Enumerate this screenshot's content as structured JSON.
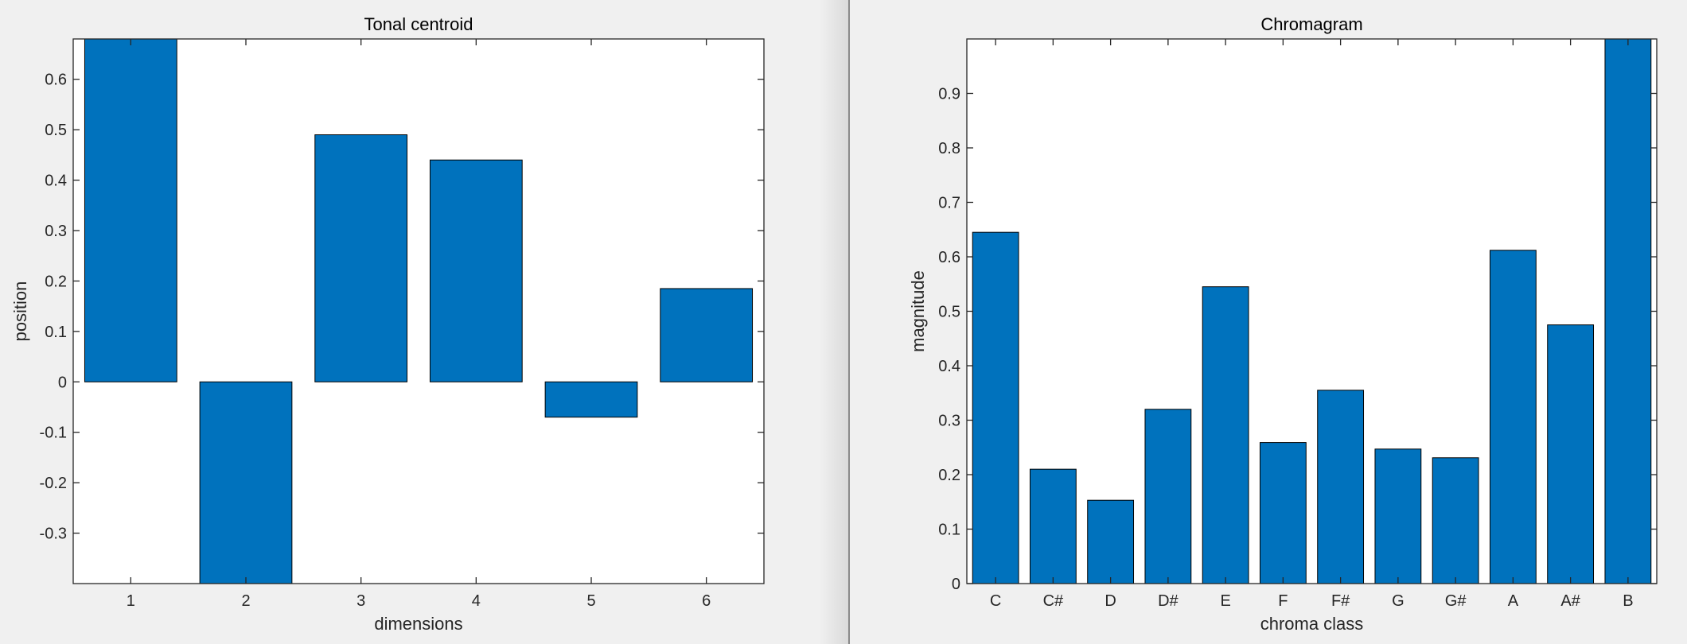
{
  "chart_data": [
    {
      "type": "bar",
      "title": "Tonal centroid",
      "xlabel": "dimensions",
      "ylabel": "position",
      "categories": [
        "1",
        "2",
        "3",
        "4",
        "5",
        "6"
      ],
      "values": [
        0.68,
        -0.4,
        0.49,
        0.44,
        -0.07,
        0.185
      ],
      "ylim": [
        -0.4,
        0.68
      ],
      "yticks": [
        -0.3,
        -0.2,
        -0.1,
        0,
        0.1,
        0.2,
        0.3,
        0.4,
        0.5,
        0.6
      ],
      "ytick_labels": [
        "-0.3",
        "-0.2",
        "-0.1",
        "0",
        "0.1",
        "0.2",
        "0.3",
        "0.4",
        "0.5",
        "0.6"
      ],
      "bar_color": "#0072bd",
      "grid": false
    },
    {
      "type": "bar",
      "title": "Chromagram",
      "xlabel": "chroma class",
      "ylabel": "magnitude",
      "categories": [
        "C",
        "C#",
        "D",
        "D#",
        "E",
        "F",
        "F#",
        "G",
        "G#",
        "A",
        "A#",
        "B"
      ],
      "values": [
        0.645,
        0.21,
        0.153,
        0.32,
        0.545,
        0.259,
        0.355,
        0.247,
        0.231,
        0.612,
        0.475,
        1.0
      ],
      "ylim": [
        0,
        1.0
      ],
      "yticks": [
        0,
        0.1,
        0.2,
        0.3,
        0.4,
        0.5,
        0.6,
        0.7,
        0.8,
        0.9
      ],
      "ytick_labels": [
        "0",
        "0.1",
        "0.2",
        "0.3",
        "0.4",
        "0.5",
        "0.6",
        "0.7",
        "0.8",
        "0.9"
      ],
      "bar_color": "#0072bd",
      "grid": false
    }
  ]
}
